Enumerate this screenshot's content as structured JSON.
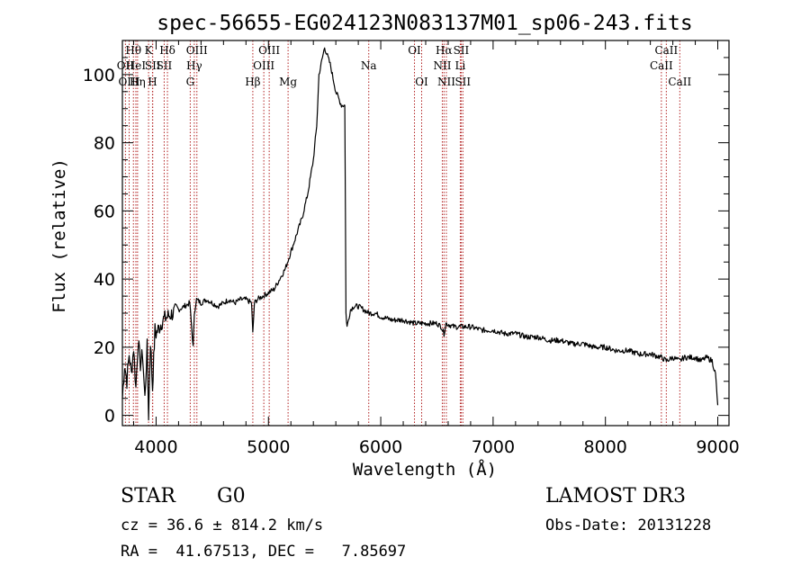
{
  "chart_data": {
    "type": "line",
    "title": "spec-56655-EG024123N083137M01_sp06-243.fits",
    "xlabel": "Wavelength (Å)",
    "ylabel": "Flux (relative)",
    "xlim": [
      3700,
      9100
    ],
    "ylim": [
      -3,
      110
    ],
    "xticks": [
      4000,
      5000,
      6000,
      7000,
      8000,
      9000
    ],
    "yticks": [
      0,
      20,
      40,
      60,
      80,
      100
    ],
    "grid": false,
    "series": [
      {
        "name": "spectrum",
        "x": [
          3700,
          3720,
          3740,
          3760,
          3780,
          3800,
          3820,
          3840,
          3860,
          3880,
          3900,
          3920,
          3933,
          3950,
          3968,
          3990,
          4000,
          4030,
          4060,
          4101,
          4150,
          4200,
          4250,
          4300,
          4330,
          4340,
          4360,
          4400,
          4450,
          4500,
          4550,
          4600,
          4650,
          4700,
          4750,
          4800,
          4850,
          4861,
          4875,
          4900,
          4950,
          5000,
          5050,
          5100,
          5150,
          5200,
          5250,
          5300,
          5350,
          5400,
          5430,
          5450,
          5500,
          5550,
          5600,
          5650,
          5680,
          5690,
          5700,
          5730,
          5760,
          5800,
          5850,
          5893,
          5950,
          6000,
          6100,
          6200,
          6300,
          6400,
          6500,
          6540,
          6563,
          6580,
          6650,
          6700,
          6800,
          6900,
          7000,
          7100,
          7200,
          7300,
          7400,
          7500,
          7600,
          7700,
          7800,
          7900,
          8000,
          8100,
          8200,
          8300,
          8400,
          8500,
          8542,
          8600,
          8662,
          8700,
          8800,
          8850,
          8900,
          8950,
          8980,
          9000
        ],
        "y": [
          5,
          15,
          10,
          18,
          12,
          20,
          8,
          22,
          15,
          18,
          5,
          20,
          0,
          22,
          8,
          25,
          24,
          26,
          28,
          29,
          30,
          31,
          32,
          33,
          20,
          30,
          34,
          33,
          34,
          33,
          32,
          33,
          34,
          33,
          34,
          34,
          33,
          24,
          33,
          34,
          35,
          36,
          37,
          40,
          43,
          48,
          53,
          58,
          65,
          75,
          85,
          100,
          108,
          103,
          95,
          91,
          91,
          30,
          26,
          31,
          32,
          32,
          31,
          30,
          30,
          29,
          28,
          28,
          27,
          27,
          27,
          26,
          24,
          27,
          26,
          26,
          26,
          25,
          25,
          24,
          24,
          23,
          23,
          22,
          22,
          21,
          21,
          20,
          20,
          19,
          19,
          18,
          18,
          17,
          16,
          17,
          16,
          17,
          17,
          16,
          17,
          16,
          12,
          3
        ]
      }
    ],
    "lines": [
      {
        "label": "Hθ",
        "x": 3798,
        "row": 1
      },
      {
        "label": "OII",
        "x": 3727,
        "row": 2
      },
      {
        "label": "OIII",
        "x": 3760,
        "row": 3
      },
      {
        "label": "HeI",
        "x": 3820,
        "row": 2
      },
      {
        "label": "Hη",
        "x": 3835,
        "row": 3
      },
      {
        "label": "K",
        "x": 3933,
        "row": 1
      },
      {
        "label": "SII",
        "x": 3970,
        "row": 2
      },
      {
        "label": "H",
        "x": 3968,
        "row": 3
      },
      {
        "label": "Hδ",
        "x": 4101,
        "row": 1
      },
      {
        "label": "SII",
        "x": 4072,
        "row": 2
      },
      {
        "label": "OIII",
        "x": 4363,
        "row": 1
      },
      {
        "label": "Hγ",
        "x": 4340,
        "row": 2
      },
      {
        "label": "G",
        "x": 4304,
        "row": 3
      },
      {
        "label": "Hβ",
        "x": 4861,
        "row": 3
      },
      {
        "label": "OIII",
        "x": 5007,
        "row": 1
      },
      {
        "label": "OIII",
        "x": 4959,
        "row": 2
      },
      {
        "label": "Mg",
        "x": 5175,
        "row": 3
      },
      {
        "label": "Na",
        "x": 5893,
        "row": 2
      },
      {
        "label": "OI",
        "x": 6300,
        "row": 1
      },
      {
        "label": "OI",
        "x": 6364,
        "row": 3
      },
      {
        "label": "Hα",
        "x": 6563,
        "row": 1
      },
      {
        "label": "SII",
        "x": 6716,
        "row": 1
      },
      {
        "label": "NII",
        "x": 6548,
        "row": 2
      },
      {
        "label": "Li",
        "x": 6708,
        "row": 2
      },
      {
        "label": "NII",
        "x": 6584,
        "row": 3
      },
      {
        "label": "SII",
        "x": 6731,
        "row": 3
      },
      {
        "label": "CaII",
        "x": 8542,
        "row": 1
      },
      {
        "label": "CaII",
        "x": 8498,
        "row": 2
      },
      {
        "label": "CaII",
        "x": 8662,
        "row": 3
      }
    ]
  },
  "info": {
    "object_class": "STAR",
    "subclass": "G0",
    "survey": "LAMOST DR3",
    "redshift": "cz = 36.6 ± 814.2 km/s",
    "obs_date": "Obs-Date: 20131228",
    "coords": "RA =  41.67513, DEC =   7.85697"
  }
}
